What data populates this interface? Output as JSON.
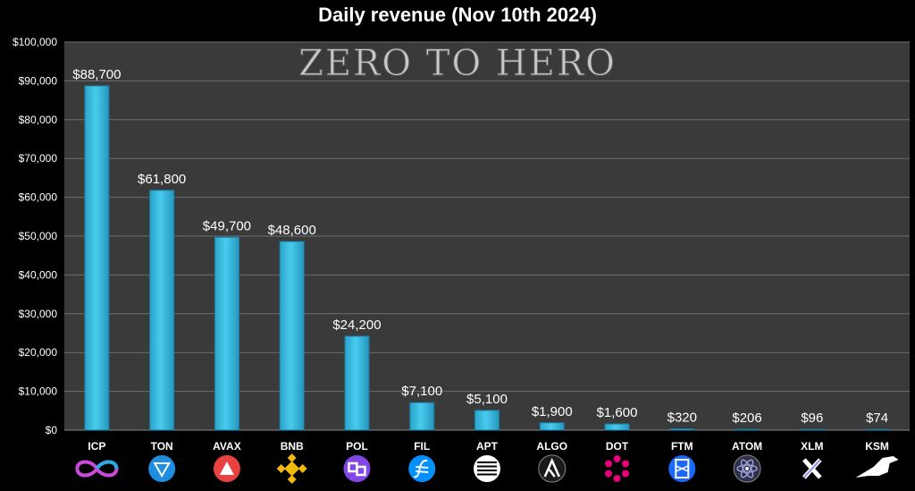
{
  "colors": {
    "background": "#000000",
    "plot": "#3a3a3a",
    "grid": "#6e6e6e",
    "bar": "#3bbde3",
    "text": "#ffffff",
    "watermark": "#c8c8c8"
  },
  "watermark": "ZERO TO HERO",
  "chart_data": {
    "type": "bar",
    "title": "Daily revenue (Nov 10th 2024)",
    "xlabel": "",
    "ylabel": "",
    "ylim": [
      0,
      100000
    ],
    "grid": true,
    "legend": "none",
    "yticks": [
      "$0",
      "$10,000",
      "$20,000",
      "$30,000",
      "$40,000",
      "$50,000",
      "$60,000",
      "$70,000",
      "$80,000",
      "$90,000",
      "$100,000"
    ],
    "categories": [
      "ICP",
      "TON",
      "AVAX",
      "BNB",
      "POL",
      "FIL",
      "APT",
      "ALGO",
      "DOT",
      "FTM",
      "ATOM",
      "XLM",
      "KSM"
    ],
    "values": [
      88700,
      61800,
      49700,
      48600,
      24200,
      7100,
      5100,
      1900,
      1600,
      320,
      206,
      96,
      74
    ],
    "data_labels": [
      "$88,700",
      "$61,800",
      "$49,700",
      "$48,600",
      "$24,200",
      "$7,100",
      "$5,100",
      "$1,900",
      "$1,600",
      "$320",
      "$206",
      "$96",
      "$74"
    ],
    "icons": [
      "icp-infinity-logo-icon",
      "ton-diamond-logo-icon",
      "avax-triangle-logo-icon",
      "bnb-diamond-logo-icon",
      "pol-link-logo-icon",
      "fil-f-logo-icon",
      "apt-lines-logo-icon",
      "algo-a-logo-icon",
      "dot-ring-logo-icon",
      "ftm-box-logo-icon",
      "atom-orbit-logo-icon",
      "xlm-x-logo-icon",
      "ksm-bird-logo-icon"
    ]
  }
}
